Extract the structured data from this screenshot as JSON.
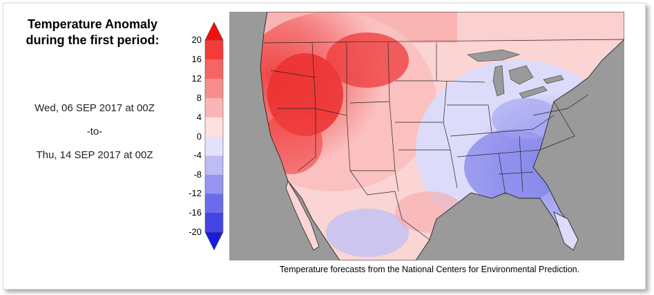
{
  "title_line1": "Temperature Anomaly",
  "title_line2": "during the first period:",
  "start_date": "Wed, 06 SEP 2017 at 00Z",
  "separator": "-to-",
  "end_date": "Thu, 14 SEP 2017 at 00Z",
  "legend": {
    "ticks": [
      "20",
      "16",
      "12",
      "8",
      "4",
      "0",
      "-4",
      "-8",
      "-12",
      "-16",
      "-20"
    ],
    "colors_warm": [
      "#f01010",
      "#f53a3a",
      "#f76464",
      "#f98d8d",
      "#fbb5b5",
      "#fde0e0"
    ],
    "colors_cool": [
      "#e2e2fc",
      "#bcbcf6",
      "#9595f0",
      "#6c6cea",
      "#4444e4",
      "#1a1ade"
    ],
    "arrow_top_color": "#f01010",
    "arrow_bottom_color": "#1a1ade"
  },
  "caption": "Temperature forecasts from the National Centers for Environmental Prediction.",
  "colors": {
    "land_background": "#9a9a9a",
    "water": "#9a9a9a",
    "border_line": "#222222"
  }
}
